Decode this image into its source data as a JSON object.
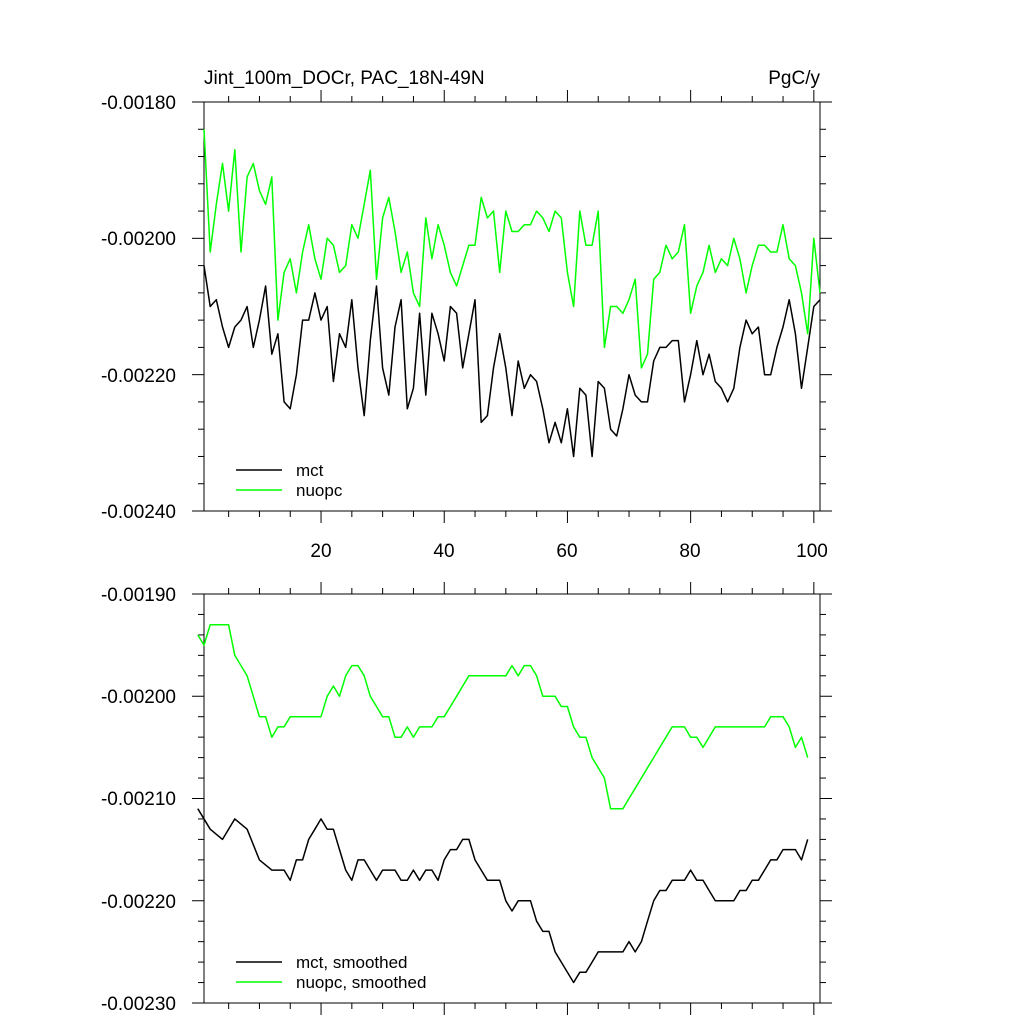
{
  "colors": {
    "mct": "#000000",
    "nuopc": "#00ff00"
  },
  "chart_data": [
    {
      "type": "line",
      "title": "Jint_100m_DOCr, PAC_18N-49N",
      "units": "PgC/y",
      "xlabel": "",
      "ylabel": "",
      "xlim": [
        1,
        101
      ],
      "ylim": [
        -0.0024,
        -0.0018
      ],
      "xticks": [
        20,
        40,
        60,
        80,
        100
      ],
      "xtick_labels": [
        "20",
        "40",
        "60",
        "80",
        "100"
      ],
      "yticks": [
        -0.0024,
        -0.0022,
        -0.002,
        -0.0018
      ],
      "ytick_labels": [
        "-0.00240",
        "-0.00220",
        "-0.00200",
        "-0.00180"
      ],
      "legend_position": "bottom-left",
      "series": [
        {
          "name": "mct",
          "color": "#000000",
          "x": [
            1,
            2,
            3,
            4,
            5,
            6,
            7,
            8,
            9,
            10,
            11,
            12,
            13,
            14,
            15,
            16,
            17,
            18,
            19,
            20,
            21,
            22,
            23,
            24,
            25,
            26,
            27,
            28,
            29,
            30,
            31,
            32,
            33,
            34,
            35,
            36,
            37,
            38,
            39,
            40,
            41,
            42,
            43,
            44,
            45,
            46,
            47,
            48,
            49,
            50,
            51,
            52,
            53,
            54,
            55,
            56,
            57,
            58,
            59,
            60,
            61,
            62,
            63,
            64,
            65,
            66,
            67,
            68,
            69,
            70,
            71,
            72,
            73,
            74,
            75,
            76,
            77,
            78,
            79,
            80,
            81,
            82,
            83,
            84,
            85,
            86,
            87,
            88,
            89,
            90,
            91,
            92,
            93,
            94,
            95,
            96,
            97,
            98,
            99,
            100,
            101
          ],
          "values": [
            -0.00204,
            -0.0021,
            -0.00209,
            -0.00213,
            -0.00216,
            -0.00213,
            -0.00212,
            -0.0021,
            -0.00216,
            -0.00212,
            -0.00207,
            -0.00217,
            -0.00214,
            -0.00224,
            -0.00225,
            -0.0022,
            -0.00212,
            -0.00212,
            -0.00208,
            -0.00212,
            -0.0021,
            -0.00221,
            -0.00214,
            -0.00216,
            -0.00209,
            -0.00219,
            -0.00226,
            -0.00215,
            -0.00207,
            -0.00219,
            -0.00223,
            -0.00213,
            -0.00209,
            -0.00225,
            -0.00222,
            -0.00211,
            -0.00223,
            -0.00211,
            -0.00214,
            -0.00218,
            -0.0021,
            -0.00211,
            -0.00219,
            -0.00214,
            -0.00209,
            -0.00227,
            -0.00226,
            -0.00219,
            -0.00214,
            -0.00219,
            -0.00226,
            -0.00218,
            -0.00222,
            -0.0022,
            -0.00221,
            -0.00225,
            -0.0023,
            -0.00227,
            -0.0023,
            -0.00225,
            -0.00232,
            -0.00222,
            -0.00223,
            -0.00232,
            -0.00221,
            -0.00222,
            -0.00228,
            -0.00229,
            -0.00225,
            -0.0022,
            -0.00223,
            -0.00224,
            -0.00224,
            -0.00218,
            -0.00216,
            -0.00216,
            -0.00215,
            -0.00215,
            -0.00224,
            -0.0022,
            -0.00215,
            -0.0022,
            -0.00217,
            -0.00221,
            -0.00222,
            -0.00224,
            -0.00222,
            -0.00216,
            -0.00212,
            -0.00214,
            -0.00213,
            -0.0022,
            -0.0022,
            -0.00216,
            -0.00213,
            -0.00209,
            -0.00214,
            -0.00222,
            -0.00216,
            -0.0021,
            -0.00209
          ]
        },
        {
          "name": "nuopc",
          "color": "#00ff00",
          "x": [
            1,
            2,
            3,
            4,
            5,
            6,
            7,
            8,
            9,
            10,
            11,
            12,
            13,
            14,
            15,
            16,
            17,
            18,
            19,
            20,
            21,
            22,
            23,
            24,
            25,
            26,
            27,
            28,
            29,
            30,
            31,
            32,
            33,
            34,
            35,
            36,
            37,
            38,
            39,
            40,
            41,
            42,
            43,
            44,
            45,
            46,
            47,
            48,
            49,
            50,
            51,
            52,
            53,
            54,
            55,
            56,
            57,
            58,
            59,
            60,
            61,
            62,
            63,
            64,
            65,
            66,
            67,
            68,
            69,
            70,
            71,
            72,
            73,
            74,
            75,
            76,
            77,
            78,
            79,
            80,
            81,
            82,
            83,
            84,
            85,
            86,
            87,
            88,
            89,
            90,
            91,
            92,
            93,
            94,
            95,
            96,
            97,
            98,
            99,
            100,
            101
          ],
          "values": [
            -0.00184,
            -0.00202,
            -0.00195,
            -0.00189,
            -0.00196,
            -0.00187,
            -0.00202,
            -0.00191,
            -0.00189,
            -0.00193,
            -0.00195,
            -0.00191,
            -0.00212,
            -0.00205,
            -0.00203,
            -0.00208,
            -0.00202,
            -0.00198,
            -0.00203,
            -0.00206,
            -0.002,
            -0.00201,
            -0.00205,
            -0.00204,
            -0.00198,
            -0.002,
            -0.00195,
            -0.0019,
            -0.00206,
            -0.00197,
            -0.00194,
            -0.00199,
            -0.00205,
            -0.00202,
            -0.00208,
            -0.0021,
            -0.00197,
            -0.00203,
            -0.00198,
            -0.00201,
            -0.00205,
            -0.00207,
            -0.00204,
            -0.00201,
            -0.00201,
            -0.00194,
            -0.00197,
            -0.00196,
            -0.00205,
            -0.00196,
            -0.00199,
            -0.00199,
            -0.00198,
            -0.00198,
            -0.00196,
            -0.00197,
            -0.00199,
            -0.00196,
            -0.00197,
            -0.00205,
            -0.0021,
            -0.00196,
            -0.00201,
            -0.00201,
            -0.00196,
            -0.00216,
            -0.0021,
            -0.0021,
            -0.00211,
            -0.00209,
            -0.00206,
            -0.00219,
            -0.00217,
            -0.00206,
            -0.00205,
            -0.00201,
            -0.00203,
            -0.00202,
            -0.00198,
            -0.00211,
            -0.00207,
            -0.00205,
            -0.00201,
            -0.00205,
            -0.00203,
            -0.00204,
            -0.002,
            -0.00203,
            -0.00208,
            -0.00204,
            -0.00201,
            -0.00201,
            -0.00202,
            -0.00202,
            -0.00198,
            -0.00203,
            -0.00204,
            -0.00208,
            -0.00214,
            -0.002,
            -0.00208
          ]
        }
      ]
    },
    {
      "type": "line",
      "title": "",
      "xlabel": "",
      "ylabel": "",
      "xlim": [
        1,
        101
      ],
      "ylim": [
        -0.0023,
        -0.0019
      ],
      "xticks": [
        20,
        40,
        60,
        80,
        100
      ],
      "xtick_labels": [],
      "yticks": [
        -0.0023,
        -0.0022,
        -0.0021,
        -0.002,
        -0.0019
      ],
      "ytick_labels": [
        "-0.00230",
        "-0.00220",
        "-0.00210",
        "-0.00200",
        "-0.00190"
      ],
      "legend_position": "bottom-left",
      "series": [
        {
          "name": "mct, smoothed",
          "color": "#000000",
          "x": [
            0,
            2,
            4,
            6,
            8,
            10,
            12,
            14,
            15,
            16,
            17,
            18,
            19,
            20,
            21,
            22,
            23,
            24,
            25,
            26,
            27,
            28,
            29,
            30,
            31,
            32,
            33,
            34,
            35,
            36,
            37,
            38,
            39,
            40,
            41,
            42,
            43,
            44,
            45,
            46,
            47,
            48,
            49,
            50,
            51,
            52,
            53,
            54,
            55,
            56,
            57,
            58,
            59,
            60,
            61,
            62,
            63,
            64,
            65,
            66,
            67,
            68,
            69,
            70,
            71,
            72,
            73,
            74,
            75,
            76,
            77,
            78,
            79,
            80,
            81,
            82,
            83,
            84,
            85,
            86,
            87,
            88,
            89,
            90,
            91,
            92,
            93,
            94,
            95,
            96,
            97,
            98,
            99
          ],
          "values": [
            -0.00211,
            -0.00213,
            -0.00214,
            -0.00212,
            -0.00213,
            -0.00216,
            -0.00217,
            -0.00217,
            -0.00218,
            -0.00216,
            -0.00216,
            -0.00214,
            -0.00213,
            -0.00212,
            -0.00213,
            -0.00213,
            -0.00215,
            -0.00217,
            -0.00218,
            -0.00216,
            -0.00216,
            -0.00217,
            -0.00218,
            -0.00217,
            -0.00217,
            -0.00217,
            -0.00218,
            -0.00218,
            -0.00217,
            -0.00218,
            -0.00217,
            -0.00217,
            -0.00218,
            -0.00216,
            -0.00215,
            -0.00215,
            -0.00214,
            -0.00214,
            -0.00216,
            -0.00217,
            -0.00218,
            -0.00218,
            -0.00218,
            -0.0022,
            -0.00221,
            -0.0022,
            -0.0022,
            -0.0022,
            -0.00222,
            -0.00223,
            -0.00223,
            -0.00225,
            -0.00226,
            -0.00227,
            -0.00228,
            -0.00227,
            -0.00227,
            -0.00226,
            -0.00225,
            -0.00225,
            -0.00225,
            -0.00225,
            -0.00225,
            -0.00224,
            -0.00225,
            -0.00224,
            -0.00222,
            -0.0022,
            -0.00219,
            -0.00219,
            -0.00218,
            -0.00218,
            -0.00218,
            -0.00217,
            -0.00218,
            -0.00218,
            -0.00219,
            -0.0022,
            -0.0022,
            -0.0022,
            -0.0022,
            -0.00219,
            -0.00219,
            -0.00218,
            -0.00218,
            -0.00217,
            -0.00216,
            -0.00216,
            -0.00215,
            -0.00215,
            -0.00215,
            -0.00216,
            -0.00214
          ]
        },
        {
          "name": "nuopc, smoothed",
          "color": "#00ff00",
          "x": [
            0,
            1,
            2,
            3,
            4,
            5,
            6,
            7,
            8,
            9,
            10,
            11,
            12,
            13,
            14,
            15,
            16,
            17,
            18,
            19,
            20,
            21,
            22,
            23,
            24,
            25,
            26,
            27,
            28,
            29,
            30,
            31,
            32,
            33,
            34,
            35,
            36,
            37,
            38,
            39,
            40,
            41,
            42,
            43,
            44,
            45,
            46,
            47,
            48,
            49,
            50,
            51,
            52,
            53,
            54,
            55,
            56,
            57,
            58,
            59,
            60,
            61,
            62,
            63,
            64,
            65,
            66,
            67,
            68,
            69,
            70,
            71,
            72,
            73,
            74,
            75,
            76,
            77,
            78,
            79,
            80,
            81,
            82,
            83,
            84,
            85,
            86,
            87,
            88,
            89,
            90,
            91,
            92,
            93,
            94,
            95,
            96,
            97,
            98,
            99
          ],
          "values": [
            -0.00194,
            -0.00195,
            -0.00193,
            -0.00193,
            -0.00193,
            -0.00193,
            -0.00196,
            -0.00197,
            -0.00198,
            -0.002,
            -0.00202,
            -0.00202,
            -0.00204,
            -0.00203,
            -0.00203,
            -0.00202,
            -0.00202,
            -0.00202,
            -0.00202,
            -0.00202,
            -0.00202,
            -0.002,
            -0.00199,
            -0.002,
            -0.00198,
            -0.00197,
            -0.00197,
            -0.00198,
            -0.002,
            -0.00201,
            -0.00202,
            -0.00202,
            -0.00204,
            -0.00204,
            -0.00203,
            -0.00204,
            -0.00203,
            -0.00203,
            -0.00203,
            -0.00202,
            -0.00202,
            -0.00201,
            -0.002,
            -0.00199,
            -0.00198,
            -0.00198,
            -0.00198,
            -0.00198,
            -0.00198,
            -0.00198,
            -0.00198,
            -0.00197,
            -0.00198,
            -0.00197,
            -0.00197,
            -0.00198,
            -0.002,
            -0.002,
            -0.002,
            -0.00201,
            -0.00201,
            -0.00203,
            -0.00204,
            -0.00204,
            -0.00206,
            -0.00207,
            -0.00208,
            -0.00211,
            -0.00211,
            -0.00211,
            -0.0021,
            -0.00209,
            -0.00208,
            -0.00207,
            -0.00206,
            -0.00205,
            -0.00204,
            -0.00203,
            -0.00203,
            -0.00203,
            -0.00204,
            -0.00204,
            -0.00205,
            -0.00204,
            -0.00203,
            -0.00203,
            -0.00203,
            -0.00203,
            -0.00203,
            -0.00203,
            -0.00203,
            -0.00203,
            -0.00203,
            -0.00202,
            -0.00202,
            -0.00202,
            -0.00203,
            -0.00205,
            -0.00204,
            -0.00206
          ]
        }
      ]
    }
  ]
}
